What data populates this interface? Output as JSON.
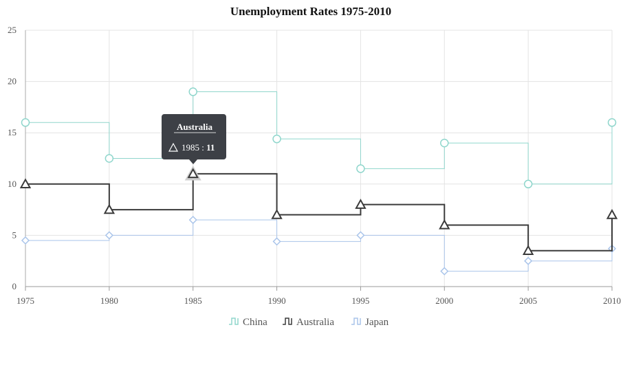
{
  "chart_data": {
    "type": "line",
    "subtype": "step",
    "title": "Unemployment Rates 1975-2010",
    "x": [
      1975,
      1980,
      1985,
      1990,
      1995,
      2000,
      2005,
      2010
    ],
    "xlim": [
      1975,
      2010
    ],
    "ylim": [
      0,
      25
    ],
    "xticks": [
      "1975",
      "1980",
      "1985",
      "1990",
      "1995",
      "2000",
      "2005",
      "2010"
    ],
    "yticks": [
      "0",
      "5",
      "10",
      "15",
      "20",
      "25"
    ],
    "grid": true,
    "legend_position": "bottom",
    "series": [
      {
        "name": "China",
        "marker": "circle",
        "color": "#8fd6cc",
        "values": [
          16,
          12.5,
          19,
          14.4,
          11.5,
          14,
          10,
          16
        ]
      },
      {
        "name": "Australia",
        "marker": "triangle",
        "color": "#3a3a3a",
        "values": [
          10,
          7.5,
          11,
          7,
          8,
          6,
          3.5,
          7
        ]
      },
      {
        "name": "Japan",
        "marker": "diamond",
        "color": "#a9c4ea",
        "values": [
          4.5,
          5,
          6.5,
          4.4,
          5,
          1.5,
          2.5,
          3.7
        ]
      }
    ]
  },
  "tooltip": {
    "series": "Australia",
    "x_label": "1985",
    "value_label": "11",
    "separator": " : "
  }
}
